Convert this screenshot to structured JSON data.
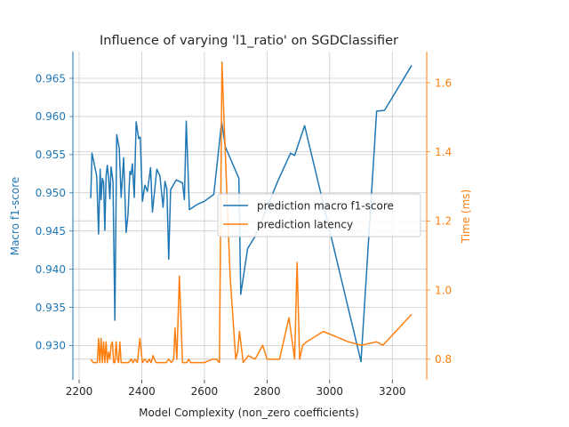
{
  "chart_data": {
    "type": "line",
    "title": "Influence of varying 'l1_ratio' on SGDClassifier",
    "xlabel": "Model Complexity (non_zero coefficients)",
    "ylabel_left": "Macro f1-score",
    "ylabel_right": "Time (ms)",
    "xlim": [
      2180,
      3310
    ],
    "ylim_left": [
      0.9255,
      0.9685
    ],
    "ylim_right": [
      0.74,
      1.69
    ],
    "x_ticks": [
      2200,
      2400,
      2600,
      2800,
      3000,
      3200
    ],
    "y_ticks_left": [
      0.93,
      0.935,
      0.94,
      0.945,
      0.95,
      0.955,
      0.96,
      0.965
    ],
    "y_tick_labels_left": [
      "0.930",
      "0.935",
      "0.940",
      "0.945",
      "0.950",
      "0.955",
      "0.960",
      "0.965"
    ],
    "y_ticks_right": [
      0.8,
      1.0,
      1.2,
      1.4,
      1.6
    ],
    "y_tick_labels_right": [
      "0.8",
      "1.0",
      "1.2",
      "1.4",
      "1.6"
    ],
    "grid": true,
    "legend_position": "center-right",
    "colors": {
      "left_axis": "#1f77b4",
      "right_axis": "#ff7f0e",
      "grid": "#cccccc",
      "text": "#262626"
    },
    "series": [
      {
        "name": "prediction macro f1-score",
        "axis": "left",
        "color": "#1f77b4",
        "x": [
          2237,
          2241,
          2256,
          2262,
          2267,
          2270,
          2274,
          2278,
          2282,
          2286,
          2290,
          2294,
          2298,
          2302,
          2308,
          2314,
          2320,
          2328,
          2334,
          2342,
          2350,
          2356,
          2362,
          2366,
          2370,
          2376,
          2382,
          2390,
          2395,
          2402,
          2410,
          2418,
          2428,
          2434,
          2448,
          2458,
          2468,
          2474,
          2480,
          2486,
          2492,
          2510,
          2530,
          2536,
          2542,
          2552,
          2578,
          2600,
          2630,
          2655,
          2667,
          2710,
          2716,
          2738,
          2762,
          2835,
          2875,
          2888,
          2920,
          3100,
          3150,
          3175,
          3262
        ],
        "y": [
          0.9493,
          0.9552,
          0.9522,
          0.9446,
          0.9531,
          0.9491,
          0.9519,
          0.9514,
          0.9451,
          0.9522,
          0.9536,
          0.9519,
          0.9492,
          0.9534,
          0.9515,
          0.9333,
          0.9576,
          0.9558,
          0.9494,
          0.9546,
          0.9448,
          0.9472,
          0.9528,
          0.9524,
          0.9538,
          0.9494,
          0.9593,
          0.9571,
          0.9573,
          0.9489,
          0.951,
          0.9502,
          0.9533,
          0.9475,
          0.9531,
          0.9522,
          0.9481,
          0.9515,
          0.9505,
          0.9413,
          0.9504,
          0.9517,
          0.9513,
          0.9491,
          0.9594,
          0.9478,
          0.9485,
          0.9489,
          0.9498,
          0.9593,
          0.956,
          0.9519,
          0.9367,
          0.9427,
          0.9443,
          0.9516,
          0.9552,
          0.9549,
          0.9588,
          0.9279,
          0.9607,
          0.9608,
          0.9667
        ]
      },
      {
        "name": "prediction latency",
        "axis": "right",
        "color": "#ff7f0e",
        "x": [
          2237,
          2245,
          2258,
          2262,
          2266,
          2270,
          2274,
          2278,
          2282,
          2286,
          2290,
          2294,
          2298,
          2302,
          2306,
          2310,
          2314,
          2318,
          2322,
          2326,
          2330,
          2334,
          2338,
          2344,
          2350,
          2358,
          2366,
          2372,
          2378,
          2386,
          2394,
          2402,
          2410,
          2418,
          2424,
          2430,
          2436,
          2440,
          2446,
          2454,
          2462,
          2470,
          2478,
          2486,
          2494,
          2502,
          2506,
          2512,
          2520,
          2530,
          2538,
          2544,
          2550,
          2556,
          2562,
          2568,
          2576,
          2590,
          2600,
          2626,
          2638,
          2648,
          2656,
          2664,
          2682,
          2700,
          2706,
          2712,
          2724,
          2740,
          2762,
          2786,
          2800,
          2840,
          2870,
          2888,
          2896,
          2904,
          2914,
          2926,
          2980,
          3060,
          3100,
          3150,
          3170,
          3262
        ],
        "y": [
          0.8,
          0.79,
          0.79,
          0.86,
          0.79,
          0.86,
          0.79,
          0.85,
          0.79,
          0.85,
          0.79,
          0.82,
          0.8,
          0.84,
          0.85,
          0.79,
          0.79,
          0.85,
          0.8,
          0.79,
          0.85,
          0.79,
          0.79,
          0.79,
          0.79,
          0.79,
          0.8,
          0.79,
          0.8,
          0.79,
          0.86,
          0.79,
          0.8,
          0.79,
          0.8,
          0.79,
          0.81,
          0.8,
          0.79,
          0.79,
          0.79,
          0.79,
          0.79,
          0.8,
          0.79,
          0.8,
          0.89,
          0.8,
          1.04,
          0.79,
          0.79,
          0.79,
          0.8,
          0.79,
          0.79,
          0.79,
          0.79,
          0.79,
          0.79,
          0.8,
          0.8,
          0.79,
          1.66,
          1.46,
          1.04,
          0.8,
          0.82,
          0.88,
          0.79,
          0.81,
          0.8,
          0.84,
          0.8,
          0.8,
          0.92,
          0.8,
          1.08,
          0.8,
          0.84,
          0.85,
          0.88,
          0.85,
          0.84,
          0.85,
          0.84,
          0.93
        ]
      }
    ]
  }
}
